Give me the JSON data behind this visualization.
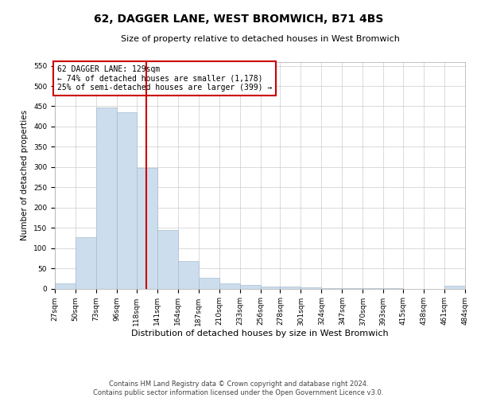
{
  "title": "62, DAGGER LANE, WEST BROMWICH, B71 4BS",
  "subtitle": "Size of property relative to detached houses in West Bromwich",
  "xlabel": "Distribution of detached houses by size in West Bromwich",
  "ylabel": "Number of detached properties",
  "footer_line1": "Contains HM Land Registry data © Crown copyright and database right 2024.",
  "footer_line2": "Contains public sector information licensed under the Open Government Licence v3.0.",
  "annotation_line1": "62 DAGGER LANE: 129sqm",
  "annotation_line2": "← 74% of detached houses are smaller (1,178)",
  "annotation_line3": "25% of semi-detached houses are larger (399) →",
  "property_size": 129,
  "vline_x": 129,
  "bar_color": "#ccdded",
  "bar_edge_color": "#aabccc",
  "vline_color": "#cc0000",
  "annotation_box_edge_color": "#cc0000",
  "ylim": [
    0,
    560
  ],
  "yticks": [
    0,
    50,
    100,
    150,
    200,
    250,
    300,
    350,
    400,
    450,
    500,
    550
  ],
  "bin_edges": [
    27,
    50,
    73,
    96,
    118,
    141,
    164,
    187,
    210,
    233,
    256,
    278,
    301,
    324,
    347,
    370,
    393,
    415,
    438,
    461,
    484
  ],
  "bin_labels": [
    "27sqm",
    "50sqm",
    "73sqm",
    "96sqm",
    "118sqm",
    "141sqm",
    "164sqm",
    "187sqm",
    "210sqm",
    "233sqm",
    "256sqm",
    "278sqm",
    "301sqm",
    "324sqm",
    "347sqm",
    "370sqm",
    "393sqm",
    "415sqm",
    "438sqm",
    "461sqm",
    "484sqm"
  ],
  "bar_heights": [
    12,
    126,
    447,
    435,
    298,
    145,
    68,
    27,
    13,
    8,
    5,
    5,
    2,
    1,
    1,
    1,
    1,
    0,
    0,
    6
  ],
  "title_fontsize": 10,
  "subtitle_fontsize": 8,
  "ylabel_fontsize": 7.5,
  "xlabel_fontsize": 8,
  "tick_fontsize": 6.5,
  "annotation_fontsize": 7,
  "footer_fontsize": 6
}
